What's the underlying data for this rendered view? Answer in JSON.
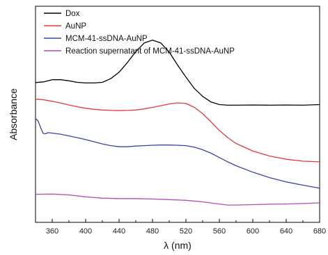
{
  "chart_data": {
    "type": "line",
    "xlabel": "λ (nm)",
    "ylabel": "Absorbance",
    "xlim": [
      340,
      680
    ],
    "ylim": [
      0,
      1
    ],
    "xticks": [
      360,
      400,
      440,
      480,
      520,
      560,
      600,
      640,
      680
    ],
    "y_tick_labels": false,
    "grid": false,
    "legend": "top-left",
    "series": [
      {
        "name": "Dox",
        "color": "#000000",
        "x": [
          340,
          350,
          360,
          370,
          380,
          390,
          400,
          410,
          420,
          430,
          440,
          450,
          460,
          470,
          480,
          490,
          500,
          510,
          520,
          530,
          540,
          550,
          560,
          570,
          580,
          600,
          620,
          640,
          660,
          680
        ],
        "y": [
          0.647,
          0.65,
          0.66,
          0.66,
          0.655,
          0.648,
          0.645,
          0.645,
          0.648,
          0.665,
          0.695,
          0.74,
          0.79,
          0.83,
          0.843,
          0.83,
          0.788,
          0.728,
          0.672,
          0.62,
          0.583,
          0.557,
          0.545,
          0.542,
          0.542,
          0.543,
          0.542,
          0.543,
          0.542,
          0.545
        ]
      },
      {
        "name": "AuNP",
        "color": "#e8383d",
        "x": [
          340,
          350,
          360,
          370,
          380,
          390,
          400,
          410,
          420,
          430,
          440,
          450,
          460,
          470,
          480,
          490,
          500,
          510,
          520,
          530,
          540,
          550,
          560,
          570,
          580,
          600,
          620,
          640,
          660,
          680
        ],
        "y": [
          0.57,
          0.567,
          0.56,
          0.552,
          0.543,
          0.535,
          0.528,
          0.523,
          0.52,
          0.518,
          0.517,
          0.518,
          0.52,
          0.525,
          0.532,
          0.54,
          0.548,
          0.553,
          0.55,
          0.532,
          0.503,
          0.465,
          0.425,
          0.392,
          0.365,
          0.33,
          0.307,
          0.292,
          0.283,
          0.28
        ]
      },
      {
        "name": "MCM-41-ssDNA-AuNP",
        "color": "#3a44a0",
        "x": [
          340,
          343,
          346,
          349,
          352,
          355,
          360,
          370,
          380,
          390,
          400,
          410,
          420,
          430,
          440,
          450,
          460,
          470,
          480,
          490,
          500,
          510,
          520,
          530,
          540,
          550,
          560,
          570,
          580,
          600,
          620,
          640,
          660,
          680
        ],
        "y": [
          0.48,
          0.47,
          0.44,
          0.412,
          0.41,
          0.415,
          0.413,
          0.408,
          0.4,
          0.392,
          0.383,
          0.373,
          0.363,
          0.355,
          0.35,
          0.35,
          0.353,
          0.355,
          0.357,
          0.358,
          0.358,
          0.357,
          0.355,
          0.348,
          0.336,
          0.32,
          0.3,
          0.28,
          0.262,
          0.232,
          0.207,
          0.187,
          0.172,
          0.158
        ]
      },
      {
        "name": "Reaction supernatant of MCM-41-ssDNA-AuNP",
        "color": "#b04db0",
        "x": [
          340,
          360,
          380,
          400,
          420,
          440,
          460,
          480,
          500,
          520,
          540,
          560,
          570,
          580,
          600,
          620,
          640,
          660,
          680
        ],
        "y": [
          0.13,
          0.131,
          0.127,
          0.118,
          0.112,
          0.11,
          0.11,
          0.108,
          0.105,
          0.102,
          0.095,
          0.085,
          0.08,
          0.08,
          0.082,
          0.084,
          0.085,
          0.087,
          0.09
        ]
      }
    ]
  }
}
